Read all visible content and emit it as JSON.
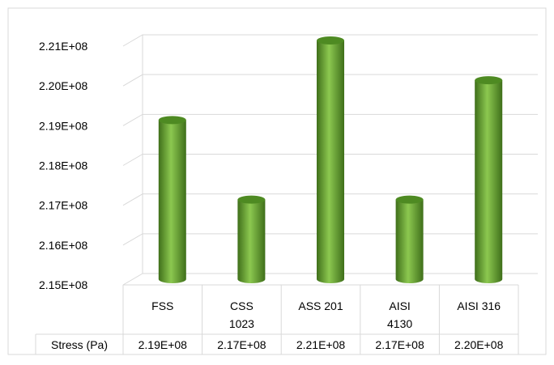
{
  "chart_data": {
    "type": "bar",
    "style": "3d-cylinder",
    "categories": [
      "FSS",
      "CSS 1023",
      "ASS 201",
      "AISI 4130",
      "AISI 316"
    ],
    "category_lines": [
      [
        "FSS"
      ],
      [
        "CSS",
        "1023"
      ],
      [
        "ASS 201"
      ],
      [
        "AISI",
        "4130"
      ],
      [
        "AISI 316"
      ]
    ],
    "series": [
      {
        "name": "Stress (Pa)",
        "values": [
          219000000.0,
          217000000.0,
          221000000.0,
          217000000.0,
          220000000.0
        ],
        "table_values": [
          "2.19E+08",
          "2.17E+08",
          "2.21E+08",
          "2.17E+08",
          "2.20E+08"
        ]
      }
    ],
    "ylim": [
      215000000.0,
      221000000.0
    ],
    "yticks": [
      215000000.0,
      216000000.0,
      217000000.0,
      218000000.0,
      219000000.0,
      220000000.0,
      221000000.0
    ],
    "ytick_labels": [
      "2.15E+08",
      "2.16E+08",
      "2.17E+08",
      "2.18E+08",
      "2.19E+08",
      "2.20E+08",
      "2.21E+08"
    ],
    "grid": true,
    "data_table": true,
    "colors": {
      "bar_dark": "#3f6f1a",
      "bar_mid": "#6aa83a",
      "bar_light": "#8cc850",
      "bar_top": "#4e8a22",
      "grid": "#d9d9d9",
      "border": "#d9d9d9"
    }
  }
}
